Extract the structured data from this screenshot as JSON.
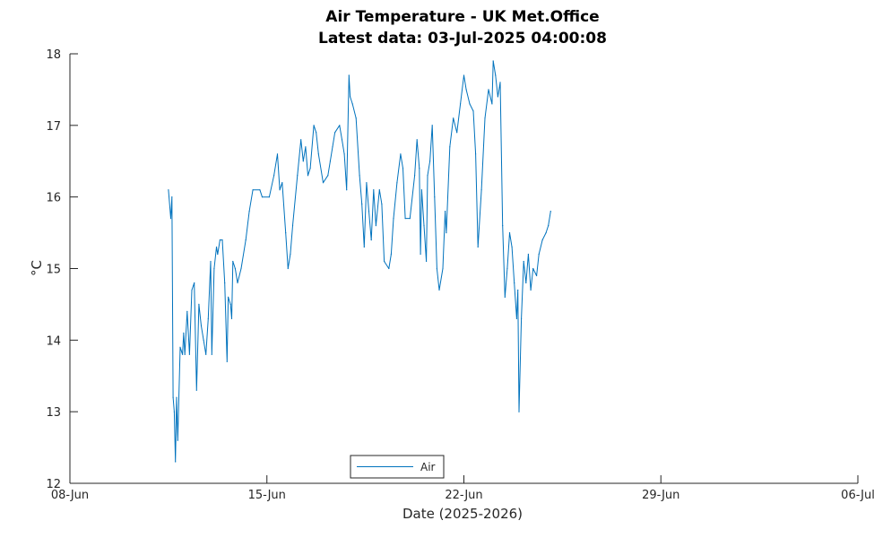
{
  "chart_data": {
    "type": "line",
    "title": "Air Temperature - UK Met.Office",
    "subtitle": "Latest data: 03-Jul-2025 04:00:08",
    "xlabel": "Date (2025-2026)",
    "ylabel": "°C",
    "xlim": [
      "2025-06-08",
      "2025-07-06"
    ],
    "ylim": [
      12,
      18
    ],
    "x_ticks": [
      {
        "date": "2025-06-08",
        "label": "08-Jun"
      },
      {
        "date": "2025-06-15",
        "label": "15-Jun"
      },
      {
        "date": "2025-06-22",
        "label": "22-Jun"
      },
      {
        "date": "2025-06-29",
        "label": "29-Jun"
      },
      {
        "date": "2025-07-06",
        "label": "06-Jul"
      }
    ],
    "y_ticks": [
      12,
      13,
      14,
      15,
      16,
      17,
      18
    ],
    "grid": false,
    "legend_position": "bottom-center",
    "colors": {
      "series": "#0072bd",
      "axis": "#262626"
    },
    "series": [
      {
        "name": "Air",
        "points": [
          [
            "2025-06-11 12:00",
            16.1
          ],
          [
            "2025-06-11 14:00",
            15.7
          ],
          [
            "2025-06-11 15:00",
            16.0
          ],
          [
            "2025-06-11 16:00",
            13.2
          ],
          [
            "2025-06-11 17:00",
            13.0
          ],
          [
            "2025-06-11 18:00",
            12.3
          ],
          [
            "2025-06-11 19:00",
            13.2
          ],
          [
            "2025-06-11 20:00",
            12.6
          ],
          [
            "2025-06-11 22:00",
            13.9
          ],
          [
            "2025-06-12 00:00",
            13.8
          ],
          [
            "2025-06-12 01:00",
            14.1
          ],
          [
            "2025-06-12 02:00",
            13.8
          ],
          [
            "2025-06-12 04:00",
            14.4
          ],
          [
            "2025-06-12 06:00",
            13.8
          ],
          [
            "2025-06-12 08:00",
            14.7
          ],
          [
            "2025-06-12 10:00",
            14.8
          ],
          [
            "2025-06-12 12:00",
            13.3
          ],
          [
            "2025-06-12 14:00",
            14.5
          ],
          [
            "2025-06-12 16:00",
            14.2
          ],
          [
            "2025-06-12 18:00",
            14.0
          ],
          [
            "2025-06-12 20:00",
            13.8
          ],
          [
            "2025-06-12 22:00",
            14.3
          ],
          [
            "2025-06-13 00:00",
            15.1
          ],
          [
            "2025-06-13 01:00",
            13.8
          ],
          [
            "2025-06-13 03:00",
            15.0
          ],
          [
            "2025-06-13 05:00",
            15.3
          ],
          [
            "2025-06-13 06:00",
            15.2
          ],
          [
            "2025-06-13 08:00",
            15.4
          ],
          [
            "2025-06-13 10:00",
            15.4
          ],
          [
            "2025-06-13 12:00",
            14.8
          ],
          [
            "2025-06-13 14:00",
            13.7
          ],
          [
            "2025-06-13 15:00",
            14.6
          ],
          [
            "2025-06-13 17:00",
            14.5
          ],
          [
            "2025-06-13 18:00",
            14.3
          ],
          [
            "2025-06-13 19:00",
            15.1
          ],
          [
            "2025-06-13 21:00",
            15.0
          ],
          [
            "2025-06-13 23:00",
            14.8
          ],
          [
            "2025-06-14 02:00",
            15.0
          ],
          [
            "2025-06-14 06:00",
            15.4
          ],
          [
            "2025-06-14 09:00",
            15.8
          ],
          [
            "2025-06-14 12:00",
            16.1
          ],
          [
            "2025-06-14 18:00",
            16.1
          ],
          [
            "2025-06-14 20:00",
            16.0
          ],
          [
            "2025-06-15 02:00",
            16.0
          ],
          [
            "2025-06-15 06:00",
            16.3
          ],
          [
            "2025-06-15 09:00",
            16.6
          ],
          [
            "2025-06-15 11:00",
            16.1
          ],
          [
            "2025-06-15 13:00",
            16.2
          ],
          [
            "2025-06-15 16:00",
            15.5
          ],
          [
            "2025-06-15 18:00",
            15.0
          ],
          [
            "2025-06-15 20:00",
            15.2
          ],
          [
            "2025-06-15 22:00",
            15.6
          ],
          [
            "2025-06-16 02:00",
            16.3
          ],
          [
            "2025-06-16 05:00",
            16.8
          ],
          [
            "2025-06-16 07:00",
            16.5
          ],
          [
            "2025-06-16 09:00",
            16.7
          ],
          [
            "2025-06-16 11:00",
            16.3
          ],
          [
            "2025-06-16 13:00",
            16.4
          ],
          [
            "2025-06-16 16:00",
            17.0
          ],
          [
            "2025-06-16 18:00",
            16.9
          ],
          [
            "2025-06-16 20:00",
            16.6
          ],
          [
            "2025-06-17 00:00",
            16.2
          ],
          [
            "2025-06-17 04:00",
            16.3
          ],
          [
            "2025-06-17 06:00",
            16.5
          ],
          [
            "2025-06-17 08:00",
            16.7
          ],
          [
            "2025-06-17 10:00",
            16.9
          ],
          [
            "2025-06-17 14:00",
            17.0
          ],
          [
            "2025-06-17 16:00",
            16.8
          ],
          [
            "2025-06-17 18:00",
            16.6
          ],
          [
            "2025-06-17 20:00",
            16.1
          ],
          [
            "2025-06-17 22:00",
            17.7
          ],
          [
            "2025-06-17 23:00",
            17.4
          ],
          [
            "2025-06-18 01:00",
            17.3
          ],
          [
            "2025-06-18 04:00",
            17.1
          ],
          [
            "2025-06-18 07:00",
            16.3
          ],
          [
            "2025-06-18 09:00",
            15.9
          ],
          [
            "2025-06-18 11:00",
            15.3
          ],
          [
            "2025-06-18 13:00",
            16.2
          ],
          [
            "2025-06-18 15:00",
            15.8
          ],
          [
            "2025-06-18 17:00",
            15.4
          ],
          [
            "2025-06-18 19:00",
            16.1
          ],
          [
            "2025-06-18 21:00",
            15.6
          ],
          [
            "2025-06-19 00:00",
            16.1
          ],
          [
            "2025-06-19 02:00",
            15.9
          ],
          [
            "2025-06-19 04:00",
            15.1
          ],
          [
            "2025-06-19 08:00",
            15.0
          ],
          [
            "2025-06-19 10:00",
            15.2
          ],
          [
            "2025-06-19 12:00",
            15.7
          ],
          [
            "2025-06-19 15:00",
            16.2
          ],
          [
            "2025-06-19 18:00",
            16.6
          ],
          [
            "2025-06-19 20:00",
            16.4
          ],
          [
            "2025-06-19 22:00",
            15.7
          ],
          [
            "2025-06-20 02:00",
            15.7
          ],
          [
            "2025-06-20 06:00",
            16.3
          ],
          [
            "2025-06-20 08:00",
            16.8
          ],
          [
            "2025-06-20 10:00",
            16.4
          ],
          [
            "2025-06-20 11:00",
            15.2
          ],
          [
            "2025-06-20 12:00",
            16.1
          ],
          [
            "2025-06-20 14:00",
            15.6
          ],
          [
            "2025-06-20 16:00",
            15.1
          ],
          [
            "2025-06-20 17:00",
            16.3
          ],
          [
            "2025-06-20 19:00",
            16.5
          ],
          [
            "2025-06-20 21:00",
            17.0
          ],
          [
            "2025-06-20 23:00",
            16.0
          ],
          [
            "2025-06-21 01:00",
            15.0
          ],
          [
            "2025-06-21 03:00",
            14.7
          ],
          [
            "2025-06-21 06:00",
            15.0
          ],
          [
            "2025-06-21 08:00",
            15.8
          ],
          [
            "2025-06-21 09:00",
            15.5
          ],
          [
            "2025-06-21 12:00",
            16.7
          ],
          [
            "2025-06-21 15:00",
            17.1
          ],
          [
            "2025-06-21 18:00",
            16.9
          ],
          [
            "2025-06-21 21:00",
            17.3
          ],
          [
            "2025-06-22 00:00",
            17.7
          ],
          [
            "2025-06-22 02:00",
            17.5
          ],
          [
            "2025-06-22 05:00",
            17.3
          ],
          [
            "2025-06-22 08:00",
            17.2
          ],
          [
            "2025-06-22 10:00",
            16.6
          ],
          [
            "2025-06-22 12:00",
            15.3
          ],
          [
            "2025-06-22 15:00",
            16.1
          ],
          [
            "2025-06-22 18:00",
            17.1
          ],
          [
            "2025-06-22 21:00",
            17.5
          ],
          [
            "2025-06-23 00:00",
            17.3
          ],
          [
            "2025-06-23 01:00",
            17.9
          ],
          [
            "2025-06-23 03:00",
            17.7
          ],
          [
            "2025-06-23 05:00",
            17.4
          ],
          [
            "2025-06-23 07:00",
            17.6
          ],
          [
            "2025-06-23 09:00",
            15.6
          ],
          [
            "2025-06-23 11:00",
            14.6
          ],
          [
            "2025-06-23 13:00",
            15.0
          ],
          [
            "2025-06-23 15:00",
            15.5
          ],
          [
            "2025-06-23 17:00",
            15.3
          ],
          [
            "2025-06-23 19:00",
            14.8
          ],
          [
            "2025-06-23 21:00",
            14.3
          ],
          [
            "2025-06-23 22:00",
            14.7
          ],
          [
            "2025-06-23 23:00",
            13.0
          ],
          [
            "2025-06-24 01:00",
            14.3
          ],
          [
            "2025-06-24 03:00",
            15.1
          ],
          [
            "2025-06-24 05:00",
            14.8
          ],
          [
            "2025-06-24 07:00",
            15.2
          ],
          [
            "2025-06-24 09:00",
            14.7
          ],
          [
            "2025-06-24 11:00",
            15.0
          ],
          [
            "2025-06-24 14:00",
            14.9
          ],
          [
            "2025-06-24 16:00",
            15.2
          ],
          [
            "2025-06-24 19:00",
            15.4
          ],
          [
            "2025-06-24 22:00",
            15.5
          ],
          [
            "2025-06-25 00:00",
            15.6
          ],
          [
            "2025-06-25 02:00",
            15.8
          ]
        ]
      }
    ]
  }
}
